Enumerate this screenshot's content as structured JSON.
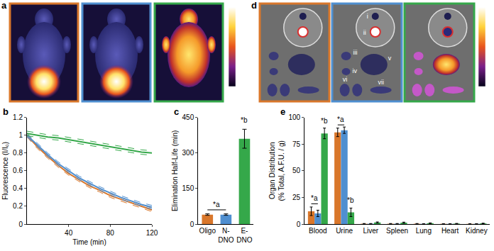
{
  "chart_data": [
    {
      "title": "b",
      "type": "line",
      "x": [
        0,
        10,
        20,
        30,
        40,
        50,
        60,
        70,
        80,
        90,
        100,
        110,
        120
      ],
      "series": [
        {
          "color": "#d9772b",
          "values": [
            1.0,
            0.87,
            0.76,
            0.66,
            0.57,
            0.5,
            0.43,
            0.38,
            0.32,
            0.28,
            0.24,
            0.2,
            0.16
          ],
          "error": [
            0.02,
            0.02,
            0.02,
            0.02,
            0.02,
            0.02,
            0.02,
            0.02,
            0.02,
            0.02,
            0.02,
            0.02,
            0.02
          ]
        },
        {
          "color": "#4f8fd0",
          "values": [
            1.0,
            0.89,
            0.78,
            0.68,
            0.6,
            0.52,
            0.46,
            0.4,
            0.35,
            0.3,
            0.26,
            0.22,
            0.19
          ],
          "error": [
            0.02,
            0.02,
            0.02,
            0.02,
            0.02,
            0.02,
            0.02,
            0.02,
            0.02,
            0.02,
            0.02,
            0.02,
            0.02
          ]
        },
        {
          "color": "#35a84a",
          "values": [
            1.02,
            1.0,
            0.98,
            0.97,
            0.95,
            0.93,
            0.91,
            0.89,
            0.87,
            0.85,
            0.83,
            0.81,
            0.8
          ],
          "error": [
            0.025,
            0.025,
            0.025,
            0.025,
            0.025,
            0.025,
            0.025,
            0.025,
            0.025,
            0.025,
            0.025,
            0.025,
            0.025
          ]
        }
      ],
      "xlabel": "Time (min)",
      "ylabel": "Fluorescence (I/I₀)",
      "xlim": [
        0,
        120
      ],
      "xticks": [
        40,
        80,
        120
      ],
      "ylim": [
        0,
        1.2
      ],
      "yticks": [
        0,
        0.2,
        0.4,
        0.6,
        0.8,
        1,
        1.2
      ],
      "line_style": "solid",
      "grid": false
    },
    {
      "title": "c",
      "type": "bar",
      "categories": [
        "Oligo",
        "N-DNO",
        "E-DNO"
      ],
      "values": [
        40,
        40,
        360
      ],
      "error": [
        3,
        3,
        40
      ],
      "colors": [
        "#d9772b",
        "#4f8fd0",
        "#35a84a"
      ],
      "ylabel": "Elimination Half-Life (min)",
      "ylim": [
        0,
        450
      ],
      "yticks": [
        0,
        150,
        300,
        450
      ],
      "annotations": [
        {
          "text": "*a",
          "categories": [
            "Oligo",
            "N-DNO"
          ],
          "y": 60
        },
        {
          "text": "*b",
          "categories": [
            "E-DNO"
          ],
          "y": 415
        }
      ],
      "grid": false
    },
    {
      "title": "e",
      "type": "bar",
      "categories": [
        "Blood",
        "Urine",
        "Liver",
        "Spleen",
        "Lung",
        "Heart",
        "Kidney"
      ],
      "series": [
        {
          "color": "#d9772b",
          "values": [
            12,
            86,
            0.3,
            0.3,
            0.3,
            0.2,
            0.2
          ],
          "error": [
            4,
            4,
            0.2,
            0.2,
            0.2,
            0.1,
            0.1
          ]
        },
        {
          "color": "#4f8fd0",
          "values": [
            10,
            88,
            0.3,
            0.3,
            0.2,
            0.2,
            0.2
          ],
          "error": [
            3,
            3,
            0.2,
            0.2,
            0.1,
            0.1,
            0.1
          ]
        },
        {
          "color": "#35a84a",
          "values": [
            85,
            11,
            1.5,
            1.3,
            0.8,
            0.4,
            0.6
          ],
          "error": [
            5,
            4,
            0.5,
            0.5,
            0.3,
            0.2,
            0.2
          ]
        }
      ],
      "ylabel": [
        "Organ Distribution",
        "(% Total, A.F.U. / g)"
      ],
      "ylim": [
        0,
        100
      ],
      "yticks": [
        0,
        25,
        50,
        75,
        100
      ],
      "annotations": [
        {
          "text": "*a",
          "categories": [
            "Blood"
          ],
          "series": [
            0,
            1
          ],
          "y": 19
        },
        {
          "text": "*b",
          "categories": [
            "Blood"
          ],
          "series": [
            2
          ],
          "y": 92
        },
        {
          "text": "*a",
          "categories": [
            "Urine"
          ],
          "series": [
            0,
            1
          ],
          "y": 93
        },
        {
          "text": "*b",
          "categories": [
            "Urine"
          ],
          "series": [
            2
          ],
          "y": 17
        }
      ],
      "grid": false
    }
  ],
  "images": [
    {
      "label": "a",
      "frames": [
        "#d9772b",
        "#4f8fd0",
        "#35a84a"
      ]
    },
    {
      "label": "d",
      "frames": [
        "#d9772b",
        "#4f8fd0",
        "#35a84a"
      ],
      "organ_labels": [
        "i",
        "ii",
        "iii",
        "iv",
        "v",
        "vi",
        "vii"
      ]
    }
  ]
}
